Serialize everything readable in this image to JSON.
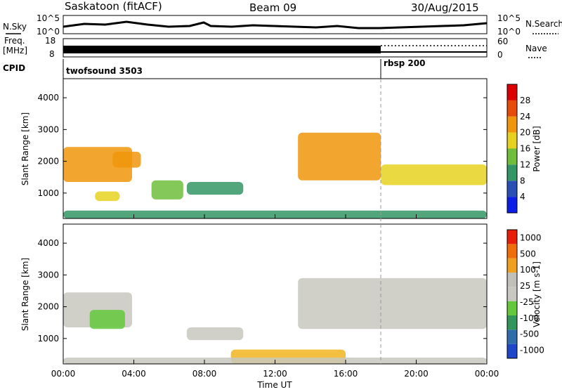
{
  "header": {
    "station": "Saskatoon (fitACF)",
    "beam": "Beam 09",
    "date": "30/Aug/2015"
  },
  "strips": {
    "nsky_label": "N.Sky",
    "nsky_ticks": [
      "10^5",
      "10^0"
    ],
    "nsearch_label": "N.Search",
    "nsearch_ticks": [
      "10^5",
      "10^0"
    ],
    "freq_label_1": "Freq.",
    "freq_label_2": "[MHz]",
    "freq_ticks": [
      "18",
      "8"
    ],
    "nave_label": "Nave",
    "nave_ticks": [
      "60",
      "0"
    ],
    "cpid_label": "CPID",
    "cpid_segments": [
      {
        "label": "twofsound 3503",
        "start_hour": 0,
        "end_hour": 18
      },
      {
        "label": "rbsp 200",
        "start_hour": 18,
        "end_hour": 24
      }
    ]
  },
  "chart_data": [
    {
      "type": "heatmap",
      "panel": "power",
      "ylabel": "Slant Range [km]",
      "y_ticks": [
        1000,
        2000,
        3000,
        4000
      ],
      "ylim": [
        200,
        4600
      ],
      "xlim": [
        0,
        24
      ],
      "colorbar_label": "Power [dB]",
      "colorbar_ticks": [
        "4",
        "8",
        "12",
        "16",
        "20",
        "24",
        "28"
      ],
      "colorbar_colors": [
        "#0a1ee6",
        "#2850b4",
        "#329664",
        "#6ebe3c",
        "#e6d21e",
        "#f0960a",
        "#e64b0a",
        "#dc0000"
      ],
      "regions": [
        {
          "t0": 0.0,
          "t1": 3.9,
          "r0": 1350,
          "r1": 2450,
          "level": 0.65
        },
        {
          "t0": 1.8,
          "t1": 3.2,
          "r0": 750,
          "r1": 1050,
          "level": 0.5
        },
        {
          "t0": 2.8,
          "t1": 4.4,
          "r0": 1800,
          "r1": 2300,
          "level": 0.7
        },
        {
          "t0": 5.0,
          "t1": 6.8,
          "r0": 800,
          "r1": 1400,
          "level": 0.45
        },
        {
          "t0": 7.0,
          "t1": 10.2,
          "r0": 950,
          "r1": 1350,
          "level": 0.35
        },
        {
          "t0": 13.3,
          "t1": 18.0,
          "r0": 1400,
          "r1": 2900,
          "level": 0.72
        },
        {
          "t0": 18.0,
          "t1": 24.0,
          "r0": 1250,
          "r1": 1900,
          "level": 0.62
        },
        {
          "t0": 0.0,
          "t1": 24.0,
          "r0": 200,
          "r1": 450,
          "level": 0.3
        }
      ]
    },
    {
      "type": "heatmap",
      "panel": "velocity",
      "ylabel": "Slant Range [km]",
      "y_ticks": [
        1000,
        2000,
        3000,
        4000
      ],
      "ylim": [
        200,
        4600
      ],
      "xlim": [
        0,
        24
      ],
      "colorbar_label": "Velocity [m s-1]",
      "colorbar_ticks": [
        "1000",
        "500",
        "100",
        "25",
        "-25",
        "-100",
        "-500",
        "-1000"
      ],
      "colorbar_colors": [
        "#1e46c8",
        "#2d6eaa",
        "#32965a",
        "#64c83c",
        "#c8c8c0",
        "#c0c0b8",
        "#f0a01e",
        "#f06e0a",
        "#e61e0a"
      ],
      "regions": [
        {
          "t0": 0.0,
          "t1": 3.9,
          "r0": 1350,
          "r1": 2450,
          "color": "#c8c8c0"
        },
        {
          "t0": 1.5,
          "t1": 3.5,
          "r0": 1300,
          "r1": 1900,
          "color": "#64c83c"
        },
        {
          "t0": 13.3,
          "t1": 24.0,
          "r0": 1300,
          "r1": 2900,
          "color": "#c8c8c0"
        },
        {
          "t0": 7.0,
          "t1": 10.2,
          "r0": 950,
          "r1": 1350,
          "color": "#c8c8c0"
        },
        {
          "t0": 9.5,
          "t1": 16.0,
          "r0": 200,
          "r1": 650,
          "color": "#f0b41e"
        },
        {
          "t0": 0.0,
          "t1": 24.0,
          "r0": 200,
          "r1": 400,
          "color": "#c8c8c0"
        }
      ]
    }
  ],
  "x_axis": {
    "ticks": [
      "00:00",
      "04:00",
      "08:00",
      "12:00",
      "16:00",
      "20:00",
      "00:00"
    ],
    "label": "Time UT"
  }
}
